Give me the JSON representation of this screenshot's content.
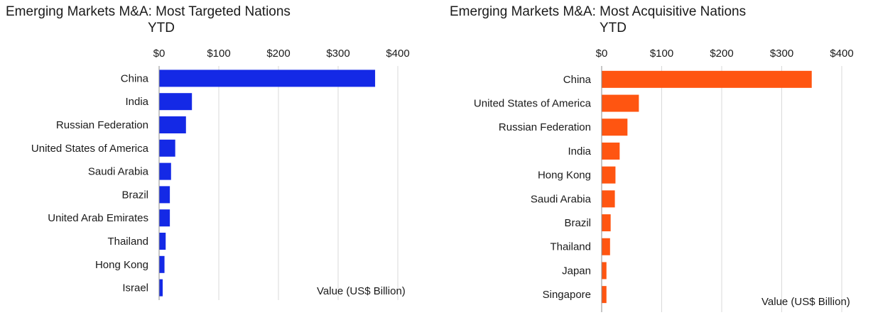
{
  "chart_data": [
    {
      "type": "bar",
      "orientation": "horizontal",
      "title": "Emerging Markets M&A: Most Targeted Nations",
      "subtitle": "YTD",
      "xlabel": "Value (US$ Billion)",
      "xlim": [
        0,
        400
      ],
      "ticks": [
        0,
        100,
        200,
        300,
        400
      ],
      "tick_labels": [
        "$0",
        "$100",
        "$200",
        "$300",
        "$400"
      ],
      "tick_position": "top",
      "grid": true,
      "color": "#1429e6",
      "categories": [
        "China",
        "India",
        "Russian Federation",
        "United States of America",
        "Saudi Arabia",
        "Brazil",
        "United Arab Emirates",
        "Thailand",
        "Hong Kong",
        "Israel"
      ],
      "values": [
        362,
        55,
        45,
        27,
        20,
        18,
        18,
        11,
        9,
        6
      ]
    },
    {
      "type": "bar",
      "orientation": "horizontal",
      "title": "Emerging Markets M&A: Most Acquisitive Nations",
      "subtitle": "YTD",
      "xlabel": "Value (US$ Billion)",
      "xlim": [
        0,
        400
      ],
      "ticks": [
        0,
        100,
        200,
        300,
        400
      ],
      "tick_labels": [
        "$0",
        "$100",
        "$200",
        "$300",
        "$400"
      ],
      "tick_position": "top",
      "grid": true,
      "color": "#ff5511",
      "categories": [
        "China",
        "United States of America",
        "Russian Federation",
        "India",
        "Hong Kong",
        "Saudi Arabia",
        "Brazil",
        "Thailand",
        "Japan",
        "Singapore"
      ],
      "values": [
        350,
        62,
        43,
        30,
        23,
        22,
        15,
        14,
        8,
        8
      ]
    }
  ]
}
